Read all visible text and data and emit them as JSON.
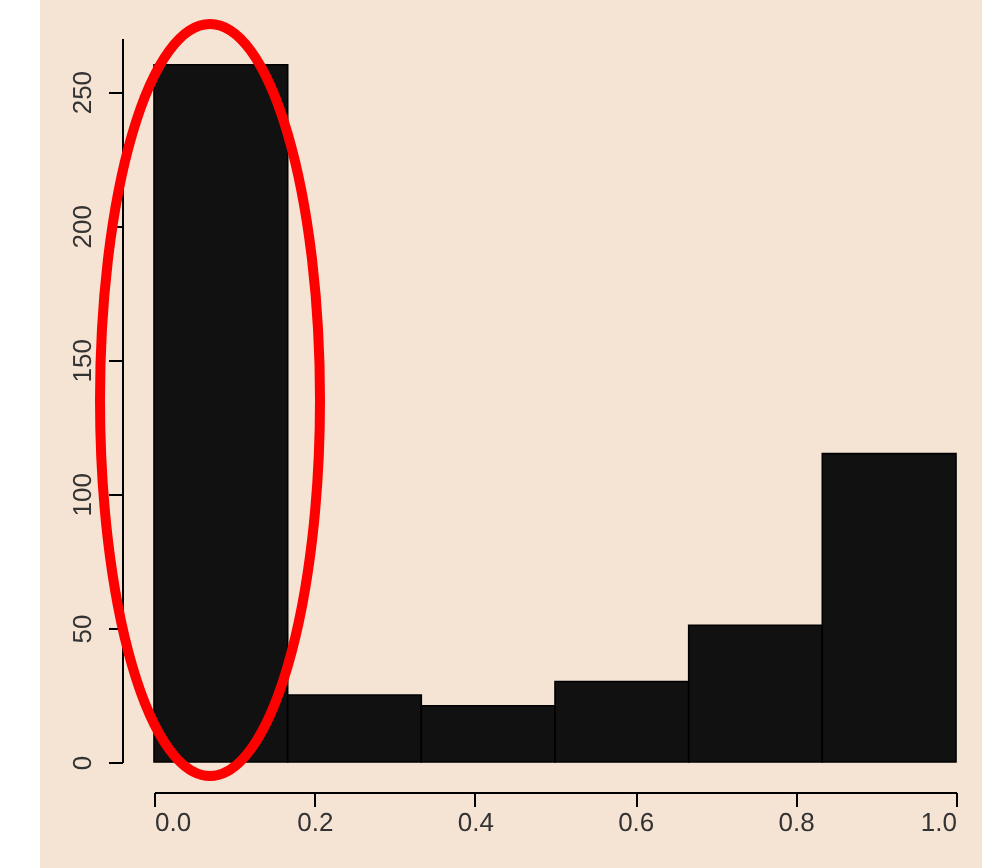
{
  "chart_data": {
    "type": "histogram",
    "bins": [
      0,
      0.1667,
      0.3333,
      0.5,
      0.6667,
      0.8333,
      1
    ],
    "values": [
      260,
      25,
      21,
      30,
      51,
      115
    ],
    "color": "#111111",
    "xlim": [
      0,
      1
    ],
    "xticks": [
      "0.0",
      0.2,
      0.4,
      0.6,
      0.8,
      "1.0"
    ],
    "ylim": [
      0,
      270
    ],
    "yticks": [
      0,
      50,
      100,
      150,
      200,
      250
    ],
    "grid": false
  }
}
